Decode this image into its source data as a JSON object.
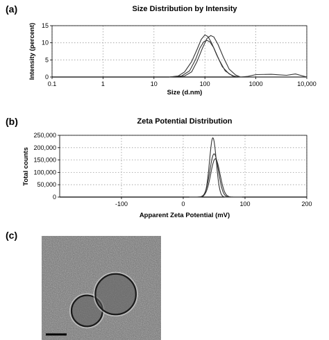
{
  "panels": {
    "a": "(a)",
    "b": "(b)",
    "c": "(c)"
  },
  "chart_data": [
    {
      "id": "size",
      "type": "line",
      "title": "Size Distribution by Intensity",
      "xlabel": "Size (d.nm)",
      "ylabel": "Intensity (percent)",
      "x_scale": "log",
      "xlim": [
        0.1,
        10000
      ],
      "ylim": [
        0,
        15
      ],
      "x_ticks": [
        0.1,
        1,
        10,
        100,
        1000,
        10000
      ],
      "x_tick_labels": [
        "0.1",
        "1",
        "10",
        "100",
        "1000",
        "10,000"
      ],
      "y_ticks": [
        0,
        5,
        10,
        15
      ],
      "y_tick_labels": [
        "0",
        "5",
        "10",
        "15"
      ],
      "grid": true,
      "series": [
        {
          "points": [
            [
              20,
              0
            ],
            [
              30,
              0.3
            ],
            [
              40,
              1.5
            ],
            [
              55,
              4.5
            ],
            [
              70,
              8
            ],
            [
              85,
              11
            ],
            [
              100,
              12.3
            ],
            [
              115,
              11.8
            ],
            [
              135,
              10
            ],
            [
              170,
              6.5
            ],
            [
              220,
              3
            ],
            [
              300,
              0.9
            ],
            [
              380,
              0.2
            ],
            [
              500,
              0
            ],
            [
              10000,
              0
            ]
          ]
        },
        {
          "points": [
            [
              20,
              0
            ],
            [
              40,
              0.3
            ],
            [
              55,
              1.5
            ],
            [
              70,
              4.5
            ],
            [
              90,
              8.5
            ],
            [
              110,
              11.3
            ],
            [
              130,
              12.1
            ],
            [
              150,
              11.7
            ],
            [
              180,
              9.6
            ],
            [
              230,
              5.8
            ],
            [
              300,
              2.3
            ],
            [
              400,
              0.6
            ],
            [
              500,
              0
            ],
            [
              700,
              0.2
            ],
            [
              1000,
              0.7
            ],
            [
              2000,
              0.8
            ],
            [
              4000,
              0.5
            ],
            [
              6000,
              0.9
            ],
            [
              7500,
              0.5
            ],
            [
              10000,
              0
            ]
          ]
        },
        {
          "points": [
            [
              20,
              0
            ],
            [
              35,
              0.3
            ],
            [
              50,
              1.8
            ],
            [
              65,
              5
            ],
            [
              80,
              8.5
            ],
            [
              95,
              10.3
            ],
            [
              110,
              10.7
            ],
            [
              125,
              10.3
            ],
            [
              150,
              8.5
            ],
            [
              190,
              5
            ],
            [
              250,
              1.8
            ],
            [
              350,
              0.3
            ],
            [
              500,
              0
            ],
            [
              10000,
              0
            ]
          ]
        }
      ]
    },
    {
      "id": "zeta",
      "type": "line",
      "title": "Zeta Potential Distribution",
      "xlabel": "Apparent Zeta Potential (mV)",
      "ylabel": "Total counts",
      "xlim": [
        -200,
        200
      ],
      "ylim": [
        0,
        250000
      ],
      "x_ticks": [
        -100,
        0,
        100,
        200
      ],
      "x_tick_labels": [
        "-100",
        "0",
        "100",
        "200"
      ],
      "y_ticks": [
        0,
        50000,
        100000,
        150000,
        200000,
        250000
      ],
      "y_tick_labels": [
        "0",
        "50,000",
        "100,000",
        "150,000",
        "200,000",
        "250,000"
      ],
      "grid": true,
      "series": [
        {
          "peak_center": 48,
          "peak_value": 240000,
          "peak_width": 5.5
        },
        {
          "peak_center": 50,
          "peak_value": 175000,
          "peak_width": 7
        },
        {
          "peak_center": 52,
          "peak_value": 155000,
          "peak_width": 7.5
        }
      ]
    }
  ],
  "tem_image": {
    "background": "#6e6e6e",
    "particles": [
      {
        "center": [
          0.38,
          0.72
        ],
        "radius": 0.13
      },
      {
        "center": [
          0.62,
          0.56
        ],
        "radius": 0.17
      }
    ],
    "scalebar": true
  }
}
